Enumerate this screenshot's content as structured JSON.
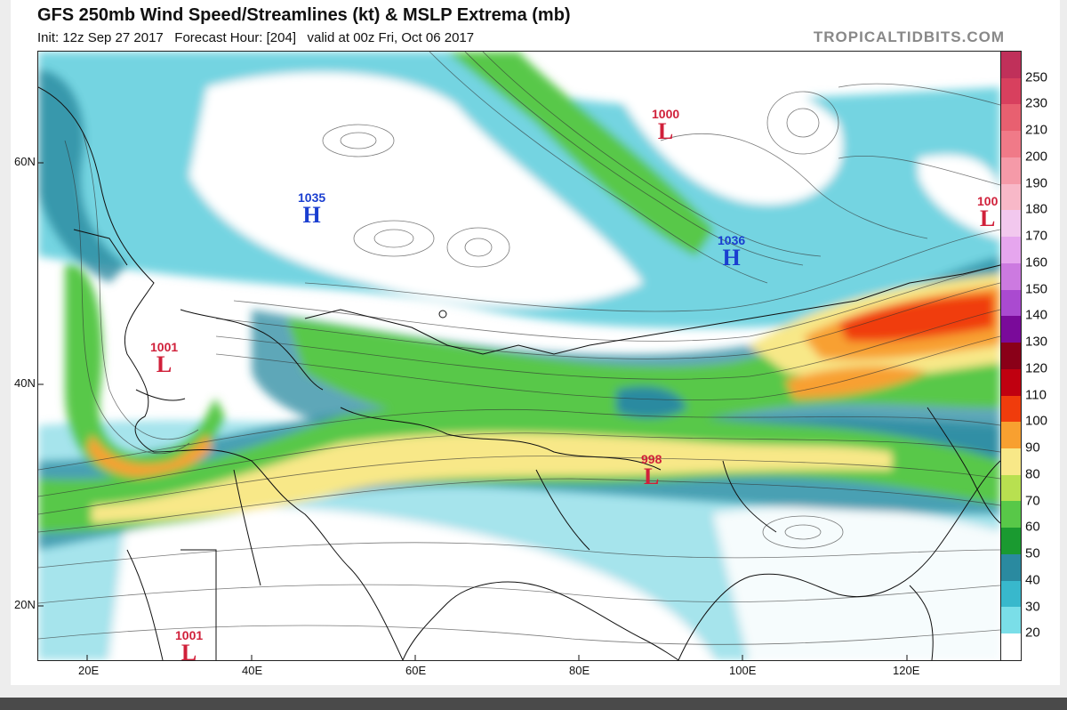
{
  "header": {
    "title": "GFS 250mb Wind Speed/Streamlines (kt) & MSLP Extrema (mb)",
    "subtitle": "Init: 12z Sep 27 2017   Forecast Hour: [204]   valid at 00z Fri, Oct 06 2017",
    "brand": "TROPICALTIDBITS.COM"
  },
  "axes": {
    "lat_labels": [
      "60N",
      "40N",
      "20N"
    ],
    "lon_labels": [
      "20E",
      "40E",
      "60E",
      "80E",
      "100E",
      "120E"
    ]
  },
  "colorbar": {
    "labels": [
      "250",
      "230",
      "210",
      "200",
      "190",
      "180",
      "170",
      "160",
      "150",
      "140",
      "130",
      "120",
      "110",
      "100",
      "90",
      "80",
      "70",
      "60",
      "50",
      "40",
      "30",
      "20"
    ],
    "colors": [
      "#c0305a",
      "#d8405e",
      "#e86070",
      "#f07a88",
      "#f59aa8",
      "#f8b8c8",
      "#f2c8ee",
      "#e6a6ee",
      "#cc7ae0",
      "#aa4ad0",
      "#7a0a9a",
      "#8a0018",
      "#c00010",
      "#f03c0c",
      "#f8a030",
      "#f8e888",
      "#b8e050",
      "#58c848",
      "#1a9a30",
      "#2a8aa0",
      "#38b8cc",
      "#7adee8",
      "#ffffff"
    ]
  },
  "pressure_centers": [
    {
      "value": "1035",
      "symbol": "H",
      "type": "high"
    },
    {
      "value": "1036",
      "symbol": "H",
      "type": "high"
    },
    {
      "value": "1000",
      "symbol": "L",
      "type": "low"
    },
    {
      "value": "1001",
      "symbol": "L",
      "type": "low"
    },
    {
      "value": "998",
      "symbol": "L",
      "type": "low"
    },
    {
      "value": "1001",
      "symbol": "L",
      "type": "low"
    },
    {
      "value": "100",
      "symbol": "L",
      "type": "low"
    }
  ],
  "colors": {
    "high": "#1a3ed0",
    "low": "#d0203a"
  }
}
